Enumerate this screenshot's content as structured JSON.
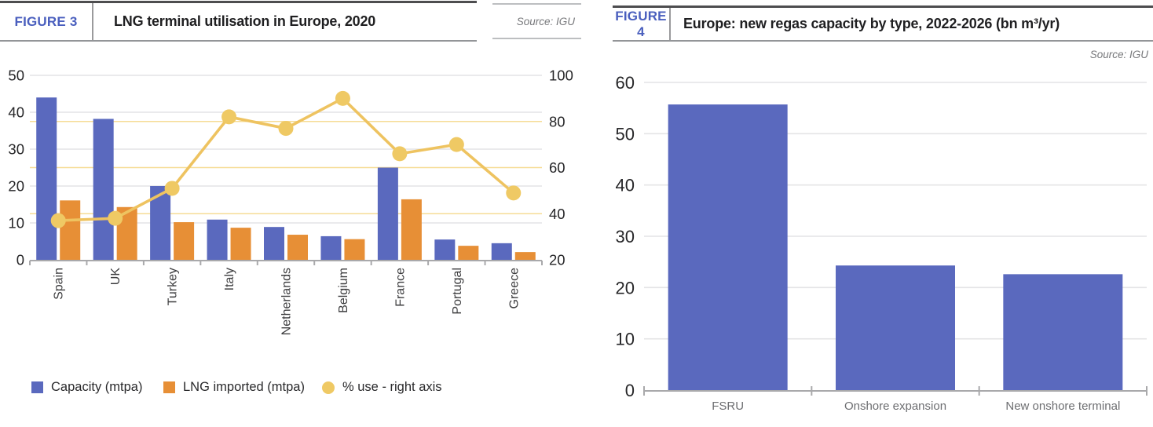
{
  "figure3": {
    "label": "FIGURE 3",
    "title": "LNG terminal utilisation in Europe, 2020",
    "source": "Source: IGU",
    "legend": [
      {
        "label": "Capacity (mtpa)",
        "shape": "square"
      },
      {
        "label": "LNG imported (mtpa)",
        "shape": "square"
      },
      {
        "label": "% use - right axis",
        "shape": "circle"
      }
    ],
    "chart_data": {
      "type": "bar",
      "subtype": "combo-bar-line-dual-axis",
      "categories": [
        "Spain",
        "UK",
        "Turkey",
        "Italy",
        "Netherlands",
        "Belgium",
        "France",
        "Portugal",
        "Greece"
      ],
      "series": [
        {
          "name": "Capacity (mtpa)",
          "type": "bar",
          "axis": "left",
          "color": "#5a69be",
          "values": [
            44,
            38.2,
            20,
            10.9,
            8.9,
            6.4,
            25,
            5.5,
            4.5
          ]
        },
        {
          "name": "LNG imported (mtpa)",
          "type": "bar",
          "axis": "left",
          "color": "#e78f36",
          "values": [
            16.1,
            14.3,
            10.2,
            8.7,
            6.8,
            5.6,
            16.4,
            3.8,
            2.1
          ]
        },
        {
          "name": "% use - right axis",
          "type": "line",
          "axis": "right",
          "color": "#eec360",
          "marker_color": "#efc964",
          "values": [
            37,
            38,
            51,
            82,
            77,
            90,
            66,
            70,
            49
          ]
        }
      ],
      "left_axis": {
        "min": 0,
        "max": 50,
        "ticks": [
          0,
          10,
          20,
          30,
          40,
          50
        ]
      },
      "right_axis": {
        "min": 20,
        "max": 100,
        "ticks": [
          20,
          40,
          60,
          80,
          100
        ]
      },
      "grid": true,
      "legend_position": "bottom"
    }
  },
  "figure4": {
    "label": "FIGURE 4",
    "title": "Europe: new regas capacity by type, 2022-2026 (bn m³/yr)",
    "source": "Source: IGU",
    "chart_data": {
      "type": "bar",
      "categories": [
        "FSRU",
        "Onshore expansion",
        "New onshore terminal"
      ],
      "values": [
        55.7,
        24.3,
        22.6
      ],
      "bar_color": "#5a69be",
      "ylim": [
        0,
        60
      ],
      "yticks": [
        0,
        10,
        20,
        30,
        40,
        50,
        60
      ],
      "grid": true
    }
  },
  "colors": {
    "figure_label_blue": "#4a5fbe",
    "bar_blue": "#5a69be",
    "bar_orange": "#e78f36",
    "line_yellow": "#eec360",
    "grid_gray": "#e4e4e6",
    "grid_yellow": "#f6dc96",
    "axis_line": "#a9a9ab",
    "tick_text": "#262628",
    "category_text_fig3": "#3c3c3e",
    "category_text_fig4": "#6d6e71",
    "source_gray": "#77787b"
  }
}
